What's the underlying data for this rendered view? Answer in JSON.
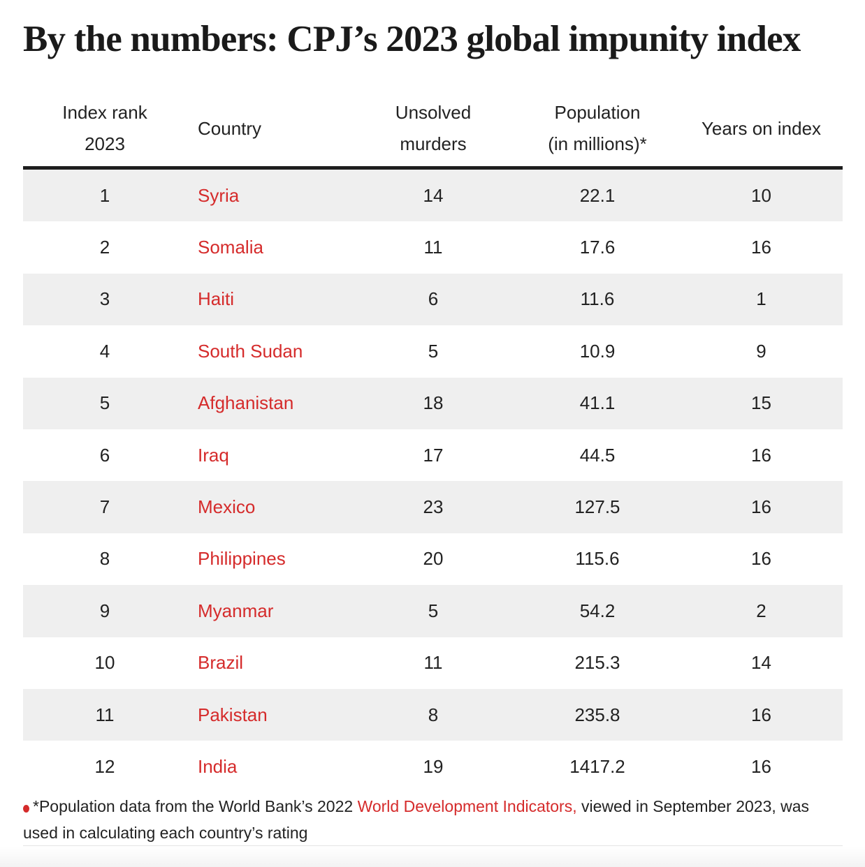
{
  "title": "By the numbers: CPJ’s 2023 global impunity index",
  "table": {
    "headers": {
      "rank_line1": "Index rank",
      "rank_line2": "2023",
      "country": "Country",
      "unsolved_line1": "Unsolved",
      "unsolved_line2": "murders",
      "population_line1": "Population",
      "population_line2": "(in millions)*",
      "years": "Years on index"
    },
    "rows": [
      {
        "rank": "1",
        "country": "Syria",
        "unsolved": "14",
        "population": "22.1",
        "years": "10"
      },
      {
        "rank": "2",
        "country": "Somalia",
        "unsolved": "11",
        "population": "17.6",
        "years": "16"
      },
      {
        "rank": "3",
        "country": "Haiti",
        "unsolved": "6",
        "population": "11.6",
        "years": "1"
      },
      {
        "rank": "4",
        "country": "South Sudan",
        "unsolved": "5",
        "population": "10.9",
        "years": "9"
      },
      {
        "rank": "5",
        "country": "Afghanistan",
        "unsolved": "18",
        "population": "41.1",
        "years": "15"
      },
      {
        "rank": "6",
        "country": "Iraq",
        "unsolved": "17",
        "population": "44.5",
        "years": "16"
      },
      {
        "rank": "7",
        "country": "Mexico",
        "unsolved": "23",
        "population": "127.5",
        "years": "16"
      },
      {
        "rank": "8",
        "country": "Philippines",
        "unsolved": "20",
        "population": "115.6",
        "years": "16"
      },
      {
        "rank": "9",
        "country": "Myanmar",
        "unsolved": "5",
        "population": "54.2",
        "years": "2"
      },
      {
        "rank": "10",
        "country": "Brazil",
        "unsolved": "11",
        "population": "215.3",
        "years": "14"
      },
      {
        "rank": "11",
        "country": "Pakistan",
        "unsolved": "8",
        "population": "235.8",
        "years": "16"
      },
      {
        "rank": "12",
        "country": "India",
        "unsolved": "19",
        "population": "1417.2",
        "years": "16"
      }
    ]
  },
  "footnote": {
    "before": "*Population data from the World Bank’s 2022 ",
    "link": "World Development Indicators,",
    "after": " viewed in September 2023, was used in calculating each country’s rating"
  },
  "colors": {
    "accent": "#d52b2b",
    "stripe": "#efefef",
    "rule": "#1e1e1e"
  }
}
